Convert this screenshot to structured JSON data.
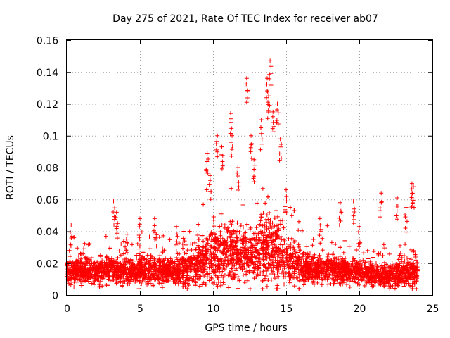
{
  "chart_data": {
    "type": "scatter",
    "title": "Day 275 of 2021, Rate Of TEC Index for receiver ab07",
    "xlabel": "GPS time / hours",
    "ylabel": "ROTI / TECUs",
    "xlim": [
      0,
      25
    ],
    "ylim": [
      0,
      0.16
    ],
    "xticks": [
      "0",
      "5",
      "10",
      "15",
      "20",
      "25"
    ],
    "yticks": [
      "0",
      "0.02",
      "0.04",
      "0.06",
      "0.08",
      "0.1",
      "0.12",
      "0.14",
      "0.16"
    ],
    "grid": true,
    "marker": "+",
    "color": "#ff0000",
    "envelope": {
      "hours": [
        0,
        1,
        2,
        3,
        4,
        5,
        6,
        7,
        8,
        9,
        10,
        11,
        12,
        13,
        14,
        15,
        16,
        17,
        18,
        19,
        20,
        21,
        22,
        23,
        24
      ],
      "typical_roti": [
        0.014,
        0.015,
        0.014,
        0.016,
        0.015,
        0.016,
        0.015,
        0.015,
        0.016,
        0.02,
        0.026,
        0.028,
        0.025,
        0.027,
        0.03,
        0.022,
        0.018,
        0.016,
        0.016,
        0.015,
        0.014,
        0.013,
        0.012,
        0.013,
        0.013
      ],
      "spread_roti": [
        0.008,
        0.009,
        0.009,
        0.01,
        0.009,
        0.01,
        0.009,
        0.009,
        0.01,
        0.014,
        0.02,
        0.02,
        0.018,
        0.02,
        0.026,
        0.016,
        0.012,
        0.01,
        0.01,
        0.01,
        0.009,
        0.008,
        0.008,
        0.009,
        0.009
      ]
    },
    "notable_points": [
      {
        "x": 0.3,
        "y": 0.044
      },
      {
        "x": 3.2,
        "y": 0.059
      },
      {
        "x": 3.4,
        "y": 0.052
      },
      {
        "x": 5.0,
        "y": 0.048
      },
      {
        "x": 6.0,
        "y": 0.048
      },
      {
        "x": 7.5,
        "y": 0.043
      },
      {
        "x": 8.0,
        "y": 0.04
      },
      {
        "x": 9.6,
        "y": 0.089
      },
      {
        "x": 9.8,
        "y": 0.075
      },
      {
        "x": 10.3,
        "y": 0.1
      },
      {
        "x": 10.6,
        "y": 0.093
      },
      {
        "x": 11.2,
        "y": 0.114
      },
      {
        "x": 11.3,
        "y": 0.1
      },
      {
        "x": 11.7,
        "y": 0.08
      },
      {
        "x": 12.3,
        "y": 0.136
      },
      {
        "x": 12.6,
        "y": 0.1
      },
      {
        "x": 12.8,
        "y": 0.085
      },
      {
        "x": 13.3,
        "y": 0.11
      },
      {
        "x": 13.7,
        "y": 0.136
      },
      {
        "x": 13.8,
        "y": 0.125
      },
      {
        "x": 13.9,
        "y": 0.147
      },
      {
        "x": 14.1,
        "y": 0.115
      },
      {
        "x": 14.4,
        "y": 0.12
      },
      {
        "x": 14.6,
        "y": 0.098
      },
      {
        "x": 15.0,
        "y": 0.066
      },
      {
        "x": 17.3,
        "y": 0.048
      },
      {
        "x": 18.7,
        "y": 0.058
      },
      {
        "x": 19.6,
        "y": 0.059
      },
      {
        "x": 20.0,
        "y": 0.043
      },
      {
        "x": 21.5,
        "y": 0.064
      },
      {
        "x": 22.6,
        "y": 0.061
      },
      {
        "x": 23.2,
        "y": 0.055
      },
      {
        "x": 23.6,
        "y": 0.07
      },
      {
        "x": 23.7,
        "y": 0.068
      }
    ]
  }
}
